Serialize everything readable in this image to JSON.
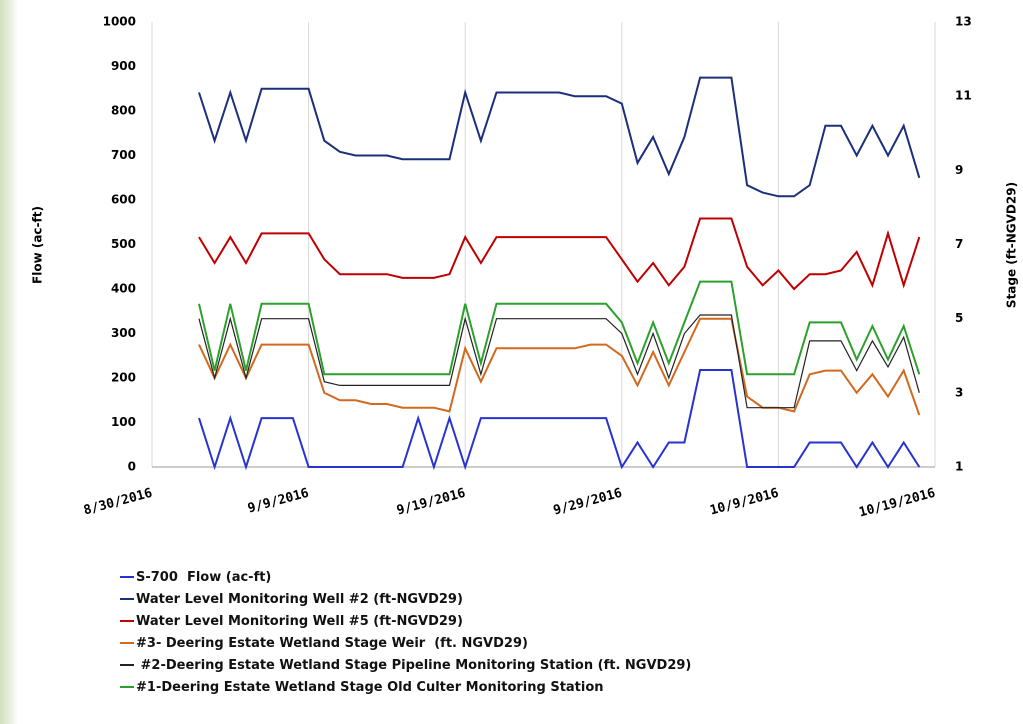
{
  "chart_data": {
    "type": "line",
    "x": [
      "9/2/2016",
      "9/3/2016",
      "9/4/2016",
      "9/5/2016",
      "9/6/2016",
      "9/7/2016",
      "9/8/2016",
      "9/9/2016",
      "9/10/2016",
      "9/11/2016",
      "9/12/2016",
      "9/13/2016",
      "9/14/2016",
      "9/15/2016",
      "9/16/2016",
      "9/17/2016",
      "9/18/2016",
      "9/19/2016",
      "9/20/2016",
      "9/21/2016",
      "9/22/2016",
      "9/23/2016",
      "9/24/2016",
      "9/25/2016",
      "9/26/2016",
      "9/27/2016",
      "9/28/2016",
      "9/29/2016",
      "9/30/2016",
      "10/1/2016",
      "10/2/2016",
      "10/3/2016",
      "10/4/2016",
      "10/5/2016",
      "10/6/2016",
      "10/7/2016",
      "10/8/2016",
      "10/9/2016",
      "10/10/2016",
      "10/11/2016",
      "10/12/2016",
      "10/13/2016",
      "10/14/2016",
      "10/15/2016",
      "10/16/2016",
      "10/17/2016",
      "10/18/2016"
    ],
    "xlim": [
      "8/30/2016",
      "10/19/2016"
    ],
    "xticks": [
      "8/30/2016",
      "9/9/2016",
      "9/19/2016",
      "9/29/2016",
      "10/9/2016",
      "10/19/2016"
    ],
    "ylabel": "Flow (ac-ft)",
    "y2label": "Stage (ft-NGVD29)",
    "ylim": [
      0,
      1000
    ],
    "yticks": [
      0,
      100,
      200,
      300,
      400,
      500,
      600,
      700,
      800,
      900,
      1000
    ],
    "y2lim": [
      1,
      13
    ],
    "y2ticks": [
      1,
      3,
      5,
      7,
      9,
      11,
      13
    ],
    "grid": true,
    "series": [
      {
        "name": "S-700  Flow (ac-ft)",
        "color": "#2733d1",
        "values": [
          110,
          0,
          110,
          0,
          110,
          110,
          110,
          0,
          0,
          0,
          0,
          0,
          0,
          0,
          110,
          0,
          110,
          0,
          110,
          110,
          110,
          110,
          110,
          110,
          110,
          110,
          110,
          0,
          55,
          0,
          55,
          55,
          218,
          218,
          218,
          0,
          0,
          0,
          0,
          55,
          55,
          55,
          0,
          55,
          0,
          55,
          0
        ]
      },
      {
        "name": "Water Level Monitoring Well #2 (ft-NGVD29)",
        "color": "#1b2f7a",
        "axis": "y2",
        "values": [
          11.1,
          9.8,
          11.1,
          9.8,
          11.2,
          11.2,
          11.2,
          11.2,
          9.8,
          9.5,
          9.4,
          9.4,
          9.4,
          9.3,
          9.3,
          9.3,
          9.3,
          11.1,
          9.8,
          11.1,
          11.1,
          11.1,
          11.1,
          11.1,
          11.0,
          11.0,
          11.0,
          10.8,
          9.2,
          9.9,
          8.9,
          9.9,
          11.5,
          11.5,
          11.5,
          8.6,
          8.4,
          8.3,
          8.3,
          8.6,
          10.2,
          10.2,
          9.4,
          10.2,
          9.4,
          10.2,
          8.8
        ]
      },
      {
        "name": "Water Level Monitoring Well #5 (ft-NGVD29)",
        "color": "#c00000",
        "axis": "y2",
        "values": [
          7.2,
          6.5,
          7.2,
          6.5,
          7.3,
          7.3,
          7.3,
          7.3,
          6.6,
          6.2,
          6.2,
          6.2,
          6.2,
          6.1,
          6.1,
          6.1,
          6.2,
          7.2,
          6.5,
          7.2,
          7.2,
          7.2,
          7.2,
          7.2,
          7.2,
          7.2,
          7.2,
          6.6,
          6.0,
          6.5,
          5.9,
          6.4,
          7.7,
          7.7,
          7.7,
          6.4,
          5.9,
          6.3,
          5.8,
          6.2,
          6.2,
          6.3,
          6.8,
          5.9,
          7.3,
          5.9,
          7.2
        ]
      },
      {
        "name": "#3- Deering Estate Wetland Stage Weir  (ft. NGVD29)",
        "color": "#d2691e",
        "axis": "y2",
        "values": [
          4.3,
          3.4,
          4.3,
          3.4,
          4.3,
          4.3,
          4.3,
          4.3,
          3.0,
          2.8,
          2.8,
          2.7,
          2.7,
          2.6,
          2.6,
          2.6,
          2.5,
          4.2,
          3.3,
          4.2,
          4.2,
          4.2,
          4.2,
          4.2,
          4.2,
          4.3,
          4.3,
          4.0,
          3.2,
          4.1,
          3.2,
          4.1,
          5.0,
          5.0,
          5.0,
          2.9,
          2.6,
          2.6,
          2.5,
          3.5,
          3.6,
          3.6,
          3.0,
          3.5,
          2.9,
          3.6,
          2.4
        ]
      },
      {
        "name": " #2-Deering Estate Wetland Stage Pipeline Monitoring Station (ft. NGVD29)",
        "color": "#222222",
        "axis": "y2",
        "values": [
          5.0,
          3.4,
          5.0,
          3.4,
          5.0,
          5.0,
          5.0,
          5.0,
          3.3,
          3.2,
          3.2,
          3.2,
          3.2,
          3.2,
          3.2,
          3.2,
          3.2,
          5.0,
          3.5,
          5.0,
          5.0,
          5.0,
          5.0,
          5.0,
          5.0,
          5.0,
          5.0,
          4.6,
          3.5,
          4.6,
          3.4,
          4.6,
          5.1,
          5.1,
          5.1,
          2.6,
          2.6,
          2.6,
          2.6,
          4.4,
          4.4,
          4.4,
          3.6,
          4.4,
          3.7,
          4.5,
          3.0
        ]
      },
      {
        "name": "#1-Deering Estate Wetland Stage Old Culter Monitoring Station",
        "color": "#2ca02c",
        "axis": "y2",
        "values": [
          5.4,
          3.6,
          5.4,
          3.6,
          5.4,
          5.4,
          5.4,
          5.4,
          3.5,
          3.5,
          3.5,
          3.5,
          3.5,
          3.5,
          3.5,
          3.5,
          3.5,
          5.4,
          3.8,
          5.4,
          5.4,
          5.4,
          5.4,
          5.4,
          5.4,
          5.4,
          5.4,
          4.9,
          3.8,
          4.9,
          3.8,
          4.9,
          6.0,
          6.0,
          6.0,
          3.5,
          3.5,
          3.5,
          3.5,
          4.9,
          4.9,
          4.9,
          3.9,
          4.8,
          3.9,
          4.8,
          3.5
        ]
      }
    ]
  }
}
